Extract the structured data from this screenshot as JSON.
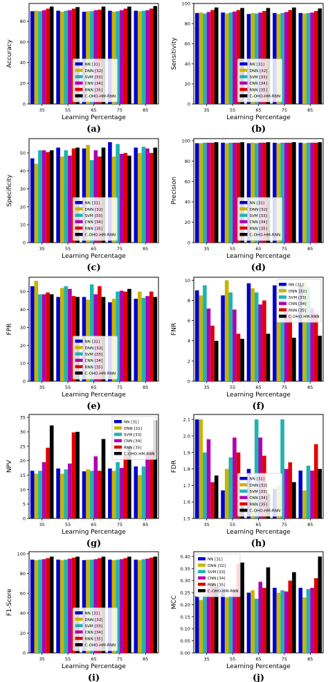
{
  "figure": {
    "series_colors": [
      "#0000cc",
      "#c8b400",
      "#1fb3b3",
      "#b000b0",
      "#e00000",
      "#000000"
    ],
    "legend_names": [
      "NN [31]",
      "DNN [32]",
      "SVM [33]",
      "CNN [34]",
      "RNN [35]",
      "C-OHO-HM-RNN"
    ]
  },
  "chart_data": [
    {
      "type": "bar",
      "panel_label": "(a)",
      "xlabel": "Learning Percentage",
      "ylabel": "Accuracy",
      "categories": [
        "35",
        "55",
        "65",
        "75",
        "85"
      ],
      "ylim": [
        0,
        97
      ],
      "yticks": [
        0,
        20,
        40,
        60,
        80
      ],
      "legend_position": "bottom-center",
      "series": [
        {
          "name": "NN [31]",
          "values": [
            89.5,
            90,
            89,
            90,
            90
          ]
        },
        {
          "name": "DNN [32]",
          "values": [
            90,
            89,
            89.5,
            89,
            89.5
          ]
        },
        {
          "name": "SVM [33]",
          "values": [
            89.5,
            90,
            89.5,
            89.5,
            90
          ]
        },
        {
          "name": "CNN [34]",
          "values": [
            90.5,
            90.5,
            90.5,
            90.5,
            90.5
          ]
        },
        {
          "name": "RNN [35]",
          "values": [
            92,
            92,
            91,
            92,
            92
          ]
        },
        {
          "name": "C-OHO-HM-RNN",
          "values": [
            94,
            93.5,
            94,
            94,
            94.5
          ]
        }
      ]
    },
    {
      "type": "bar",
      "panel_label": "(b)",
      "xlabel": "Learning Percentage",
      "ylabel": "Sensitivity",
      "categories": [
        "35",
        "55",
        "65",
        "75",
        "85"
      ],
      "ylim": [
        0,
        100
      ],
      "yticks": [
        0,
        20,
        40,
        60,
        80,
        100
      ],
      "legend_position": "bottom-center",
      "series": [
        {
          "name": "NN [31]",
          "values": [
            90.5,
            91,
            89.5,
            90.5,
            90.5
          ]
        },
        {
          "name": "DNN [32]",
          "values": [
            91,
            90,
            90.5,
            89.5,
            90
          ]
        },
        {
          "name": "SVM [33]",
          "values": [
            90,
            91,
            90,
            90.5,
            90.5
          ]
        },
        {
          "name": "CNN [34]",
          "values": [
            91.5,
            92,
            91,
            91.5,
            91
          ]
        },
        {
          "name": "RNN [35]",
          "values": [
            93.5,
            93.5,
            92.5,
            93.5,
            92.5
          ]
        },
        {
          "name": "C-OHO-HM-RNN",
          "values": [
            96,
            95.5,
            95.5,
            96,
            95
          ]
        }
      ]
    },
    {
      "type": "bar",
      "panel_label": "(c)",
      "xlabel": "Learning Percentage",
      "ylabel": "Specificity",
      "categories": [
        "35",
        "55",
        "65",
        "75",
        "85"
      ],
      "ylim": [
        0,
        58
      ],
      "yticks": [
        0,
        10,
        20,
        30,
        40,
        50
      ],
      "legend_position": "bottom-center",
      "series": [
        {
          "name": "NN [31]",
          "values": [
            47,
            53,
            52.5,
            56,
            53
          ]
        },
        {
          "name": "DNN [32]",
          "values": [
            44,
            48,
            54.5,
            48,
            50
          ]
        },
        {
          "name": "SVM [33]",
          "values": [
            51.5,
            51.5,
            46,
            55,
            53.5
          ]
        },
        {
          "name": "CNN [34]",
          "values": [
            51.5,
            48.5,
            51.5,
            49.5,
            52.5
          ]
        },
        {
          "name": "RNN [35]",
          "values": [
            50.5,
            52.5,
            48,
            50,
            50
          ]
        },
        {
          "name": "C-OHO-HM-RNN",
          "values": [
            51.5,
            53,
            53,
            48.5,
            53
          ]
        }
      ]
    },
    {
      "type": "bar",
      "panel_label": "(d)",
      "xlabel": "Learning Percentage",
      "ylabel": "Precision",
      "categories": [
        "35",
        "55",
        "65",
        "75",
        "85"
      ],
      "ylim": [
        0,
        102
      ],
      "yticks": [
        0,
        20,
        40,
        60,
        80,
        100
      ],
      "legend_position": "bottom-center",
      "series": [
        {
          "name": "NN [31]",
          "values": [
            97.5,
            98,
            97.5,
            98,
            98
          ]
        },
        {
          "name": "DNN [32]",
          "values": [
            97.5,
            97.5,
            98,
            97.5,
            97.5
          ]
        },
        {
          "name": "SVM [33]",
          "values": [
            98,
            98,
            97.5,
            98,
            98
          ]
        },
        {
          "name": "CNN [34]",
          "values": [
            98,
            98,
            98,
            98,
            98
          ]
        },
        {
          "name": "RNN [35]",
          "values": [
            98,
            98,
            98,
            98,
            98
          ]
        },
        {
          "name": "C-OHO-HM-RNN",
          "values": [
            98.5,
            98.5,
            98.5,
            98.5,
            98.5
          ]
        }
      ]
    },
    {
      "type": "bar",
      "panel_label": "(e)",
      "xlabel": "Learning Percentage",
      "ylabel": "FPR",
      "categories": [
        "35",
        "55",
        "65",
        "75",
        "85"
      ],
      "ylim": [
        0,
        58
      ],
      "yticks": [
        0,
        10,
        20,
        30,
        40,
        50
      ],
      "legend_position": "bottom-center",
      "series": [
        {
          "name": "NN [31]",
          "values": [
            53,
            47,
            47,
            44,
            46
          ]
        },
        {
          "name": "DNN [32]",
          "values": [
            56,
            52,
            45.5,
            46,
            50
          ]
        },
        {
          "name": "SVM [33]",
          "values": [
            48.5,
            53,
            54,
            50,
            46.5
          ]
        },
        {
          "name": "CNN [34]",
          "values": [
            48.5,
            51.5,
            48.5,
            50.5,
            47.5
          ]
        },
        {
          "name": "RNN [35]",
          "values": [
            49.5,
            47.5,
            53,
            50,
            50
          ]
        },
        {
          "name": "C-OHO-HM-RNN",
          "values": [
            48.5,
            47,
            47,
            51.5,
            47
          ]
        }
      ]
    },
    {
      "type": "bar",
      "panel_label": "(f)",
      "xlabel": "Learning Percentage",
      "ylabel": "FNR",
      "categories": [
        "35",
        "55",
        "65",
        "75",
        "85"
      ],
      "ylim": [
        0,
        10.3
      ],
      "yticks": [
        0,
        2,
        4,
        6,
        8,
        10
      ],
      "legend_position": "top-right",
      "series": [
        {
          "name": "NN [31]",
          "values": [
            9,
            8.5,
            9.7,
            9.5,
            9.5
          ]
        },
        {
          "name": "DNN [32]",
          "values": [
            8.5,
            10,
            9.2,
            9.5,
            9.8
          ]
        },
        {
          "name": "SVM [33]",
          "values": [
            9.5,
            8.8,
            8.8,
            9.6,
            9.3
          ]
        },
        {
          "name": "CNN [34]",
          "values": [
            7.2,
            7.1,
            7.6,
            7.3,
            7.2
          ]
        },
        {
          "name": "RNN [35]",
          "values": [
            5.5,
            4.7,
            8,
            6.6,
            6.7
          ]
        },
        {
          "name": "C-OHO-HM-RNN",
          "values": [
            4,
            4.2,
            4.7,
            4.3,
            4.5
          ]
        }
      ]
    },
    {
      "type": "bar",
      "panel_label": "(g)",
      "xlabel": "Learning Percentage",
      "ylabel": "NPV",
      "categories": [
        "35",
        "55",
        "65",
        "75",
        "85"
      ],
      "ylim": [
        0,
        36
      ],
      "yticks": [
        0,
        5,
        10,
        15,
        20,
        25,
        30,
        35
      ],
      "legend_position": "top-right",
      "series": [
        {
          "name": "NN [31]",
          "values": [
            16.5,
            17.3,
            16.3,
            17.3,
            18
          ]
        },
        {
          "name": "DNN [32]",
          "values": [
            15.5,
            15.5,
            17,
            16.5,
            15
          ]
        },
        {
          "name": "SVM [33]",
          "values": [
            16.5,
            17,
            16.5,
            19.5,
            18
          ]
        },
        {
          "name": "CNN [34]",
          "values": [
            19.5,
            19,
            21.5,
            17.5,
            22.5
          ]
        },
        {
          "name": "RNN [35]",
          "values": [
            24.5,
            29.8,
            16.5,
            22,
            23.5
          ]
        },
        {
          "name": "C-OHO-HM-RNN",
          "values": [
            32.2,
            30,
            27.5,
            25,
            34
          ]
        }
      ]
    },
    {
      "type": "bar",
      "panel_label": "(h)",
      "xlabel": "Learning Percentage",
      "ylabel": "FDR",
      "categories": [
        "35",
        "55",
        "65",
        "75",
        "85"
      ],
      "ylim": [
        1.5,
        2.13
      ],
      "yticks": [
        1.5,
        1.6,
        1.7,
        1.8,
        1.9,
        2.0,
        2.1
      ],
      "legend_position": "bottom-center",
      "series": [
        {
          "name": "NN [31]",
          "values": [
            2.1,
            1.67,
            1.8,
            1.68,
            1.79
          ]
        },
        {
          "name": "DNN [32]",
          "values": [
            2.1,
            1.8,
            1.69,
            1.7,
            1.67
          ]
        },
        {
          "name": "SVM [33]",
          "values": [
            1.9,
            1.87,
            2.1,
            2.1,
            1.82
          ]
        },
        {
          "name": "CNN [34]",
          "values": [
            1.98,
            1.99,
            1.99,
            1.8,
            1.79
          ]
        },
        {
          "name": "RNN [35]",
          "values": [
            1.72,
            1.9,
            1.88,
            1.84,
            1.95
          ]
        },
        {
          "name": "C-OHO-HM-RNN",
          "values": [
            1.76,
            1.59,
            1.65,
            1.72,
            1.8
          ]
        }
      ]
    },
    {
      "type": "bar",
      "panel_label": "(i)",
      "xlabel": "Learning Percentage",
      "ylabel": "F1-Score",
      "categories": [
        "35",
        "55",
        "65",
        "75",
        "85"
      ],
      "ylim": [
        0,
        102
      ],
      "yticks": [
        0,
        20,
        40,
        60,
        80,
        100
      ],
      "legend_position": "bottom-center",
      "series": [
        {
          "name": "NN [31]",
          "values": [
            94,
            94,
            93.5,
            94,
            94
          ]
        },
        {
          "name": "DNN [32]",
          "values": [
            93.5,
            93.5,
            94,
            93.5,
            93.5
          ]
        },
        {
          "name": "SVM [33]",
          "values": [
            94,
            94,
            94,
            94,
            94.5
          ]
        },
        {
          "name": "CNN [34]",
          "values": [
            94.5,
            95,
            94.5,
            94.5,
            95
          ]
        },
        {
          "name": "RNN [35]",
          "values": [
            95.5,
            96,
            95.5,
            95.5,
            96
          ]
        },
        {
          "name": "C-OHO-HM-RNN",
          "values": [
            97,
            97,
            97,
            97,
            97
          ]
        }
      ]
    },
    {
      "type": "bar",
      "panel_label": "(j)",
      "xlabel": "Learning Percentage",
      "ylabel": "MCC",
      "categories": [
        "35",
        "55",
        "65",
        "75",
        "85"
      ],
      "ylim": [
        0,
        0.42
      ],
      "yticks": [
        0.0,
        0.05,
        0.1,
        0.15,
        0.2,
        0.25,
        0.3,
        0.35,
        0.4
      ],
      "legend_position": "top-left",
      "series": [
        {
          "name": "NN [31]",
          "values": [
            0.235,
            0.27,
            0.25,
            0.27,
            0.27
          ]
        },
        {
          "name": "DNN [32]",
          "values": [
            0.22,
            0.23,
            0.26,
            0.25,
            0.23
          ]
        },
        {
          "name": "SVM [33]",
          "values": [
            0.245,
            0.235,
            0.225,
            0.26,
            0.265
          ]
        },
        {
          "name": "CNN [34]",
          "values": [
            0.27,
            0.26,
            0.295,
            0.255,
            0.27
          ]
        },
        {
          "name": "RNN [35]",
          "values": [
            0.29,
            0.37,
            0.27,
            0.3,
            0.31
          ]
        },
        {
          "name": "C-OHO-HM-RNN",
          "values": [
            0.275,
            0.375,
            0.355,
            0.335,
            0.4
          ]
        }
      ]
    }
  ]
}
